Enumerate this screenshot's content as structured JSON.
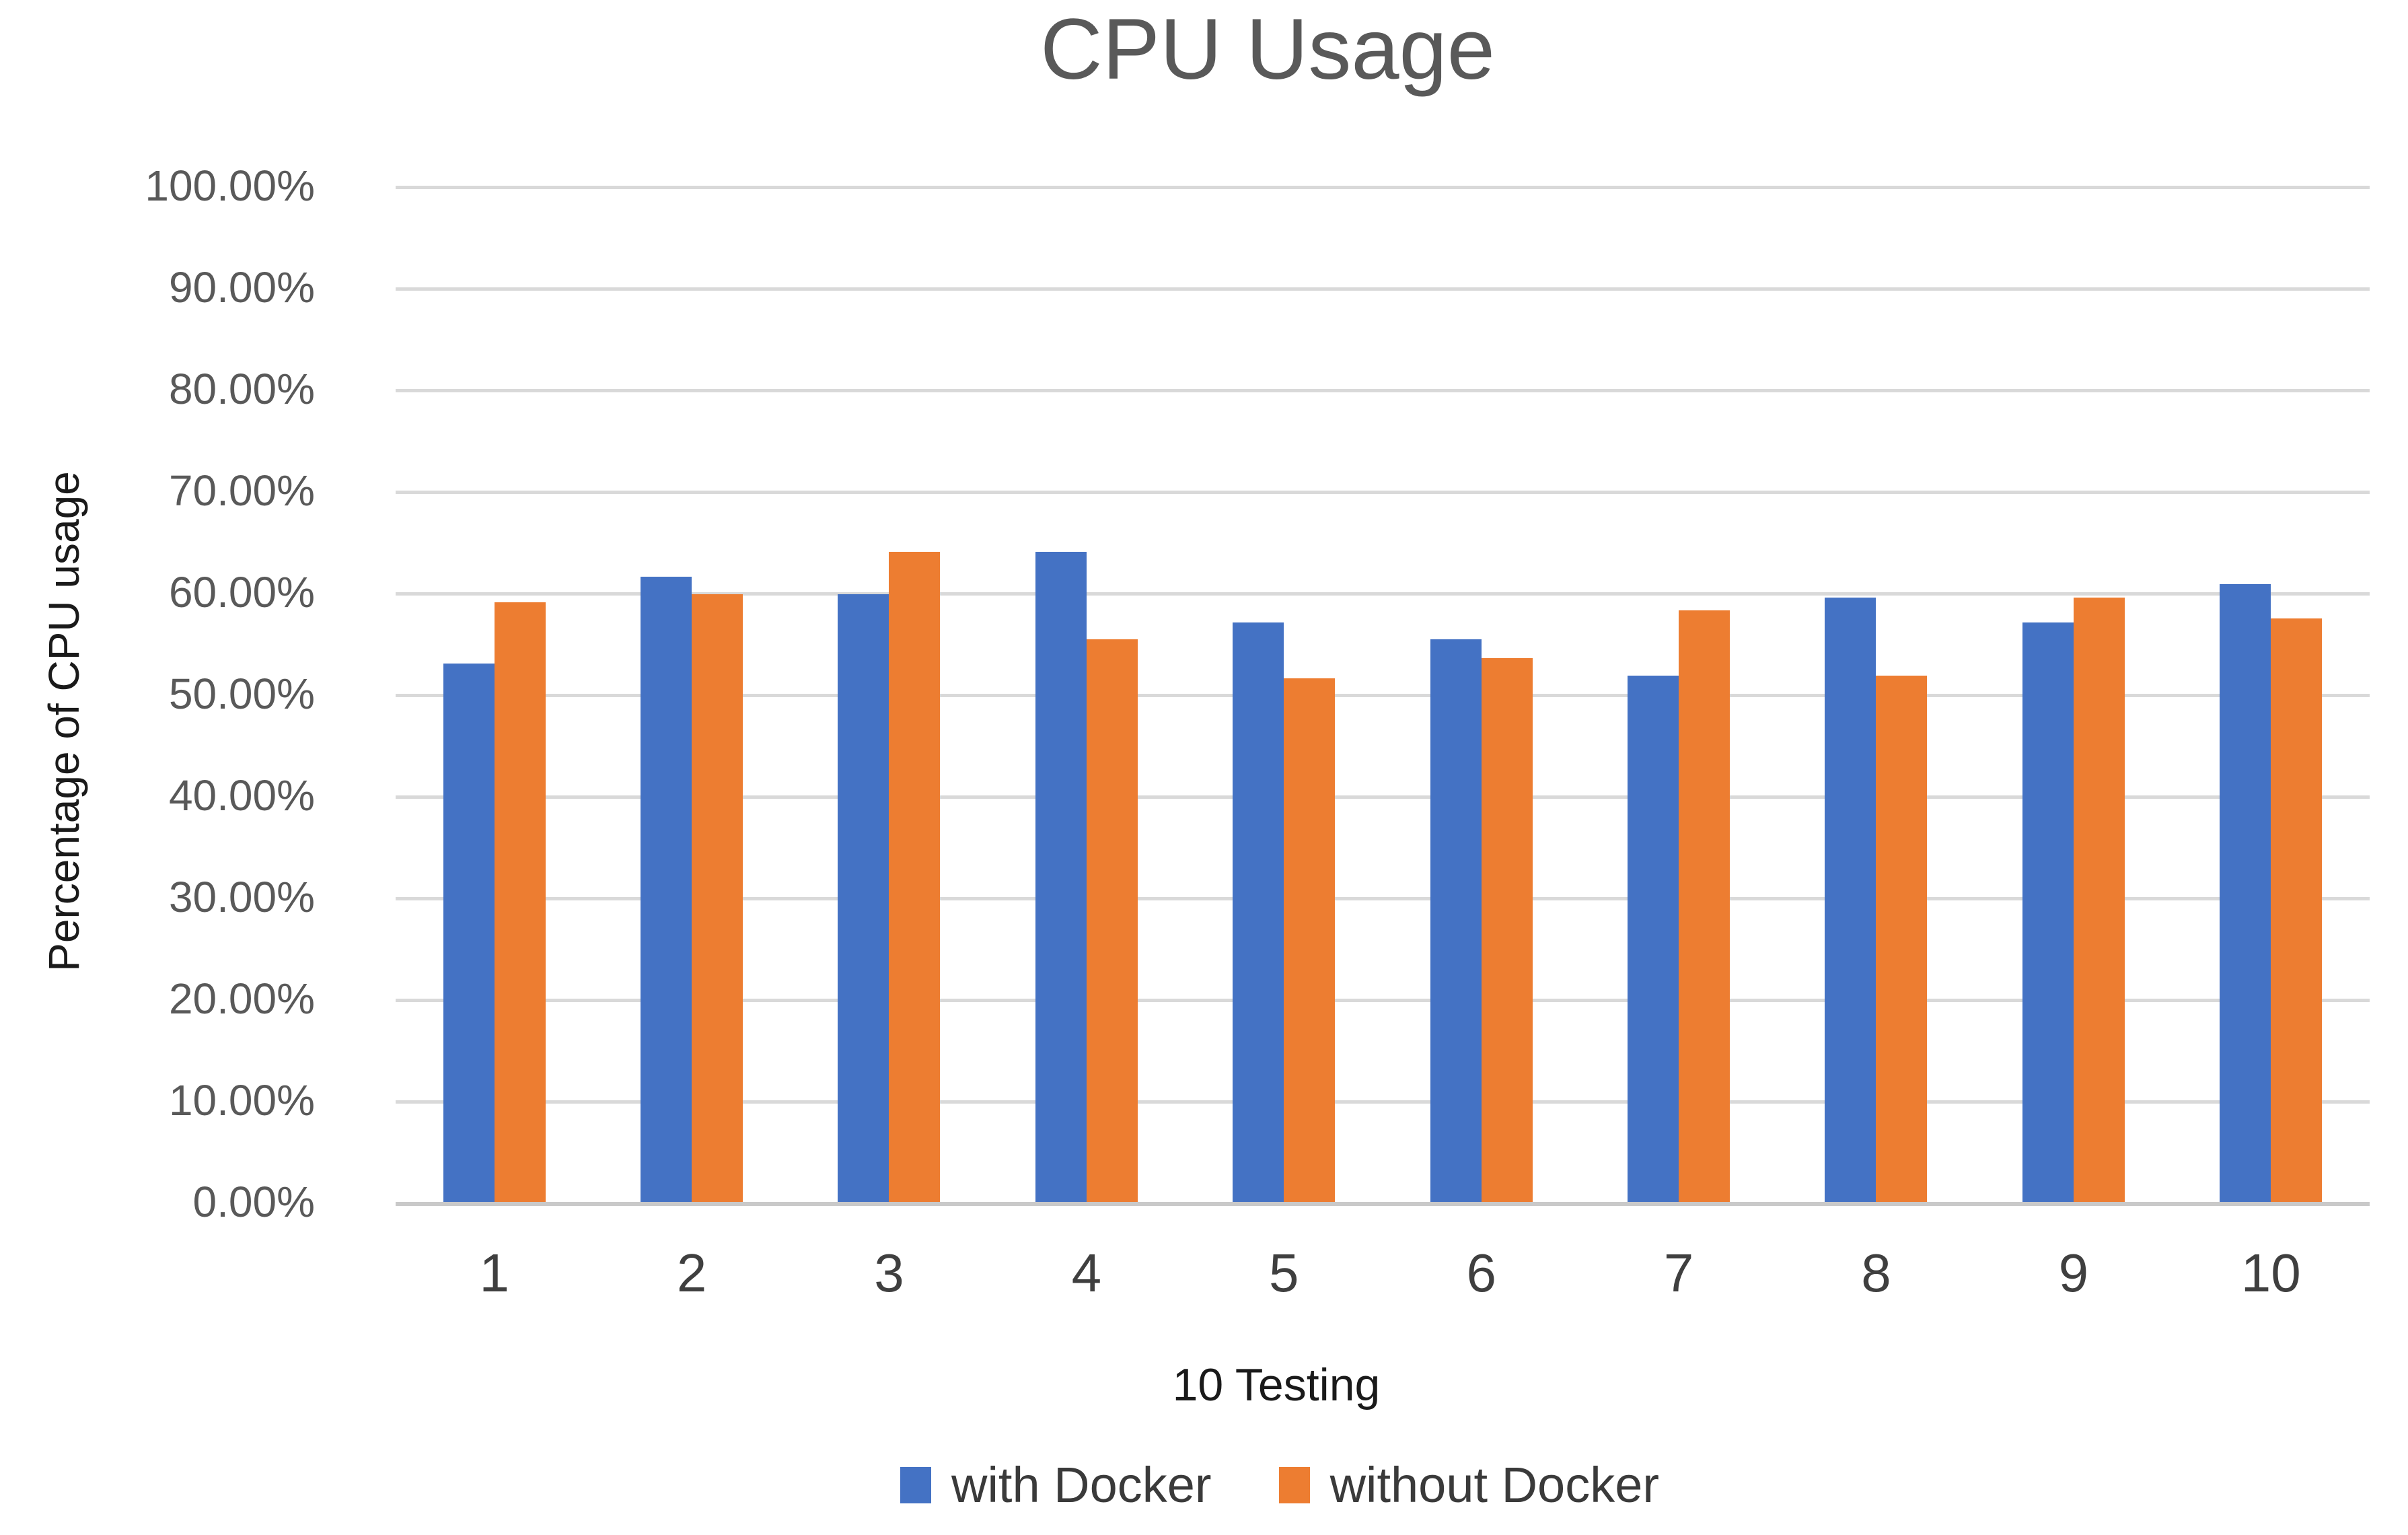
{
  "page": {
    "background": "#FFFFFF"
  },
  "chart_data": {
    "type": "bar",
    "title": "CPU Usage",
    "xlabel": "10 Testing",
    "ylabel": "Percentage of CPU usage",
    "categories": [
      "1",
      "2",
      "3",
      "4",
      "5",
      "6",
      "7",
      "8",
      "9",
      "10"
    ],
    "series": [
      {
        "name": "with Docker",
        "color": "#4472C4",
        "values": [
          53.0,
          61.5,
          59.8,
          64.0,
          57.0,
          55.4,
          51.8,
          59.5,
          57.0,
          60.8
        ]
      },
      {
        "name": "without Docker",
        "color": "#ED7D31",
        "values": [
          59.0,
          59.8,
          64.0,
          55.4,
          51.5,
          53.5,
          58.2,
          51.8,
          59.5,
          57.4
        ]
      }
    ],
    "ylim": [
      0,
      100
    ],
    "y_tick_labels": [
      "100.00%",
      "90.00%",
      "80.00%",
      "70.00%",
      "60.00%",
      "50.00%",
      "40.00%",
      "30.00%",
      "20.00%",
      "10.00%",
      "0.00%"
    ],
    "grid": true,
    "legend_position": "bottom",
    "gridline_color": "#D9D9D9",
    "axis_line_color": "#C9C9C9",
    "text_colors": {
      "title": "#595959",
      "y_ticks": "#595959",
      "x_ticks": "#3F3F3F",
      "axis_titles": "#1A1A1A",
      "legend": "#3A3A3A"
    }
  }
}
